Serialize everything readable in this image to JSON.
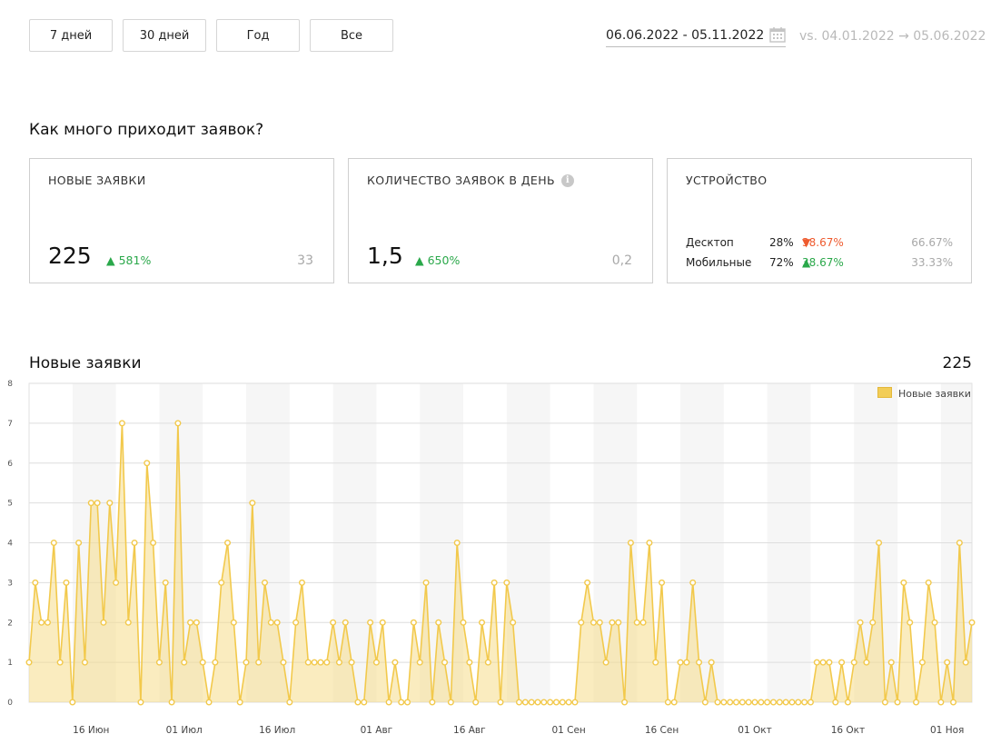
{
  "period_buttons": [
    "7 дней",
    "30 дней",
    "Год",
    "Все"
  ],
  "date_range": "06.06.2022 - 05.11.2022",
  "compare_range": "vs. 04.01.2022 → 05.06.2022",
  "section_title": "Как много приходит заявок?",
  "cards": {
    "new_requests": {
      "title": "НОВЫЕ ЗАЯВКИ",
      "value": "225",
      "delta": "581%",
      "prev": "33"
    },
    "per_day": {
      "title": "КОЛИЧЕСТВО ЗАЯВОК В ДЕНЬ",
      "value": "1,5",
      "delta": "650%",
      "prev": "0,2"
    },
    "device": {
      "title": "УСТРОЙСТВО",
      "rows": [
        {
          "name": "Десктоп",
          "pct": "28%",
          "delta": "38.67%",
          "direction": "down",
          "prev": "66.67%"
        },
        {
          "name": "Мобильные",
          "pct": "72%",
          "delta": "38.67%",
          "direction": "up",
          "prev": "33.33%"
        }
      ]
    }
  },
  "chart_title": "Новые заявки",
  "chart_total": "225",
  "colors": {
    "line": "#f2c94c",
    "fill": "#f6dc8a",
    "delta_up": "#2aa84a",
    "delta_down": "#ee5a2e"
  },
  "chart_data": {
    "type": "area",
    "x_start": "2022-06-06",
    "x_end": "2022-11-05",
    "x_tick_labels": [
      "16 Июн",
      "01 Июл",
      "16 Июл",
      "01 Авг",
      "16 Авг",
      "01 Сен",
      "16 Сен",
      "01 Окт",
      "16 Окт",
      "01 Ноя"
    ],
    "ylim": [
      0,
      8
    ],
    "y_ticks": [
      0,
      1,
      2,
      3,
      4,
      5,
      6,
      7,
      8
    ],
    "grid": true,
    "legend": "top-right",
    "series": [
      {
        "name": "Новые заявки",
        "values": [
          1,
          3,
          2,
          2,
          4,
          1,
          3,
          0,
          4,
          1,
          5,
          5,
          2,
          5,
          3,
          7,
          2,
          4,
          0,
          6,
          4,
          1,
          3,
          0,
          7,
          1,
          2,
          2,
          1,
          0,
          1,
          3,
          4,
          2,
          0,
          1,
          5,
          1,
          3,
          2,
          2,
          1,
          0,
          2,
          3,
          1,
          1,
          1,
          1,
          2,
          1,
          2,
          1,
          0,
          0,
          2,
          1,
          2,
          0,
          1,
          0,
          0,
          2,
          1,
          3,
          0,
          2,
          1,
          0,
          4,
          2,
          1,
          0,
          2,
          1,
          3,
          0,
          3,
          2,
          0,
          0,
          0,
          0,
          0,
          0,
          0,
          0,
          0,
          0,
          2,
          3,
          2,
          2,
          1,
          2,
          2,
          0,
          4,
          2,
          2,
          4,
          1,
          3,
          0,
          0,
          1,
          1,
          3,
          1,
          0,
          1,
          0,
          0,
          0,
          0,
          0,
          0,
          0,
          0,
          0,
          0,
          0,
          0,
          0,
          0,
          0,
          0,
          1,
          1,
          1,
          0,
          1,
          0,
          1,
          2,
          1,
          2,
          4,
          0,
          1,
          0,
          3,
          2,
          0,
          1,
          3,
          2,
          0,
          1,
          0,
          4,
          1,
          2
        ]
      }
    ]
  }
}
